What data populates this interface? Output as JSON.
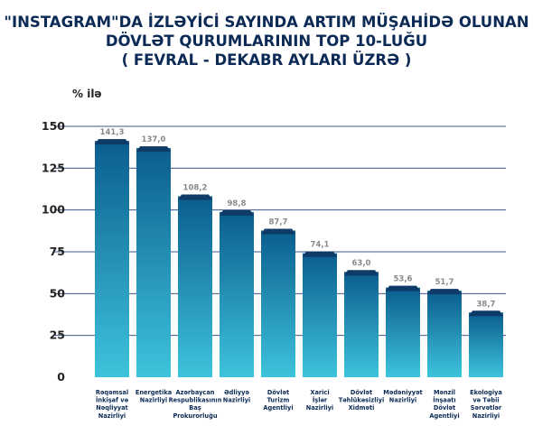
{
  "title_lines": [
    "\"INSTAGRAM\"DA İZLƏYİCİ SAYINDA ARTIM MÜŞAHİDƏ OLUNAN",
    "DÖVLƏT QURUMLARININ TOP 10-LUĞU",
    "( FEVRAL - DEKABR AYLARI ÜZRƏ )"
  ],
  "colors": {
    "title": "#0b2a55",
    "bar_top": "#0b5d8e",
    "bar_bottom": "#3ec3dc",
    "bar_cap": "#0d3a66",
    "value_label": "#8a8a8a",
    "axis_text": "#222222",
    "gridline": "#1a3b6b"
  },
  "chart_data": {
    "type": "bar",
    "ylabel": "% ilə",
    "ylim": [
      0,
      150
    ],
    "yticks": [
      0,
      25,
      50,
      75,
      100,
      125,
      150
    ],
    "grid": true,
    "value_labels": [
      "141,3",
      "137,0",
      "108,2",
      "98,8",
      "87,7",
      "74,1",
      "63,0",
      "53,6",
      "51,7",
      "38,7"
    ],
    "values": [
      141.3,
      137.0,
      108.2,
      98.8,
      87.7,
      74.1,
      63.0,
      53.6,
      51.7,
      38.7
    ],
    "categories": [
      [
        "Rəqəmsal",
        "İnkişaf və",
        "Nəqliyyat",
        "Nazirliyi"
      ],
      [
        "Energetika",
        "Nazirliyi"
      ],
      [
        "Azərbaycan",
        "Respublikasının",
        "Baş",
        "Prokurorluğu"
      ],
      [
        "Ədliyyə",
        "Nazirliyi"
      ],
      [
        "Dövlət",
        "Turizm",
        "Agentliyi"
      ],
      [
        "Xarici",
        "İşlər",
        "Nazirliyi"
      ],
      [
        "Dövlət",
        "Təhlükəsizliyi",
        "Xidməti"
      ],
      [
        "Mədəniyyət",
        "Nazirliyi"
      ],
      [
        "Mənzil",
        "İnşaatı",
        "Dövlət",
        "Agentliyi"
      ],
      [
        "Ekologiya",
        "və Təbii",
        "Sərvətlər",
        "Nazirliyi"
      ]
    ]
  }
}
